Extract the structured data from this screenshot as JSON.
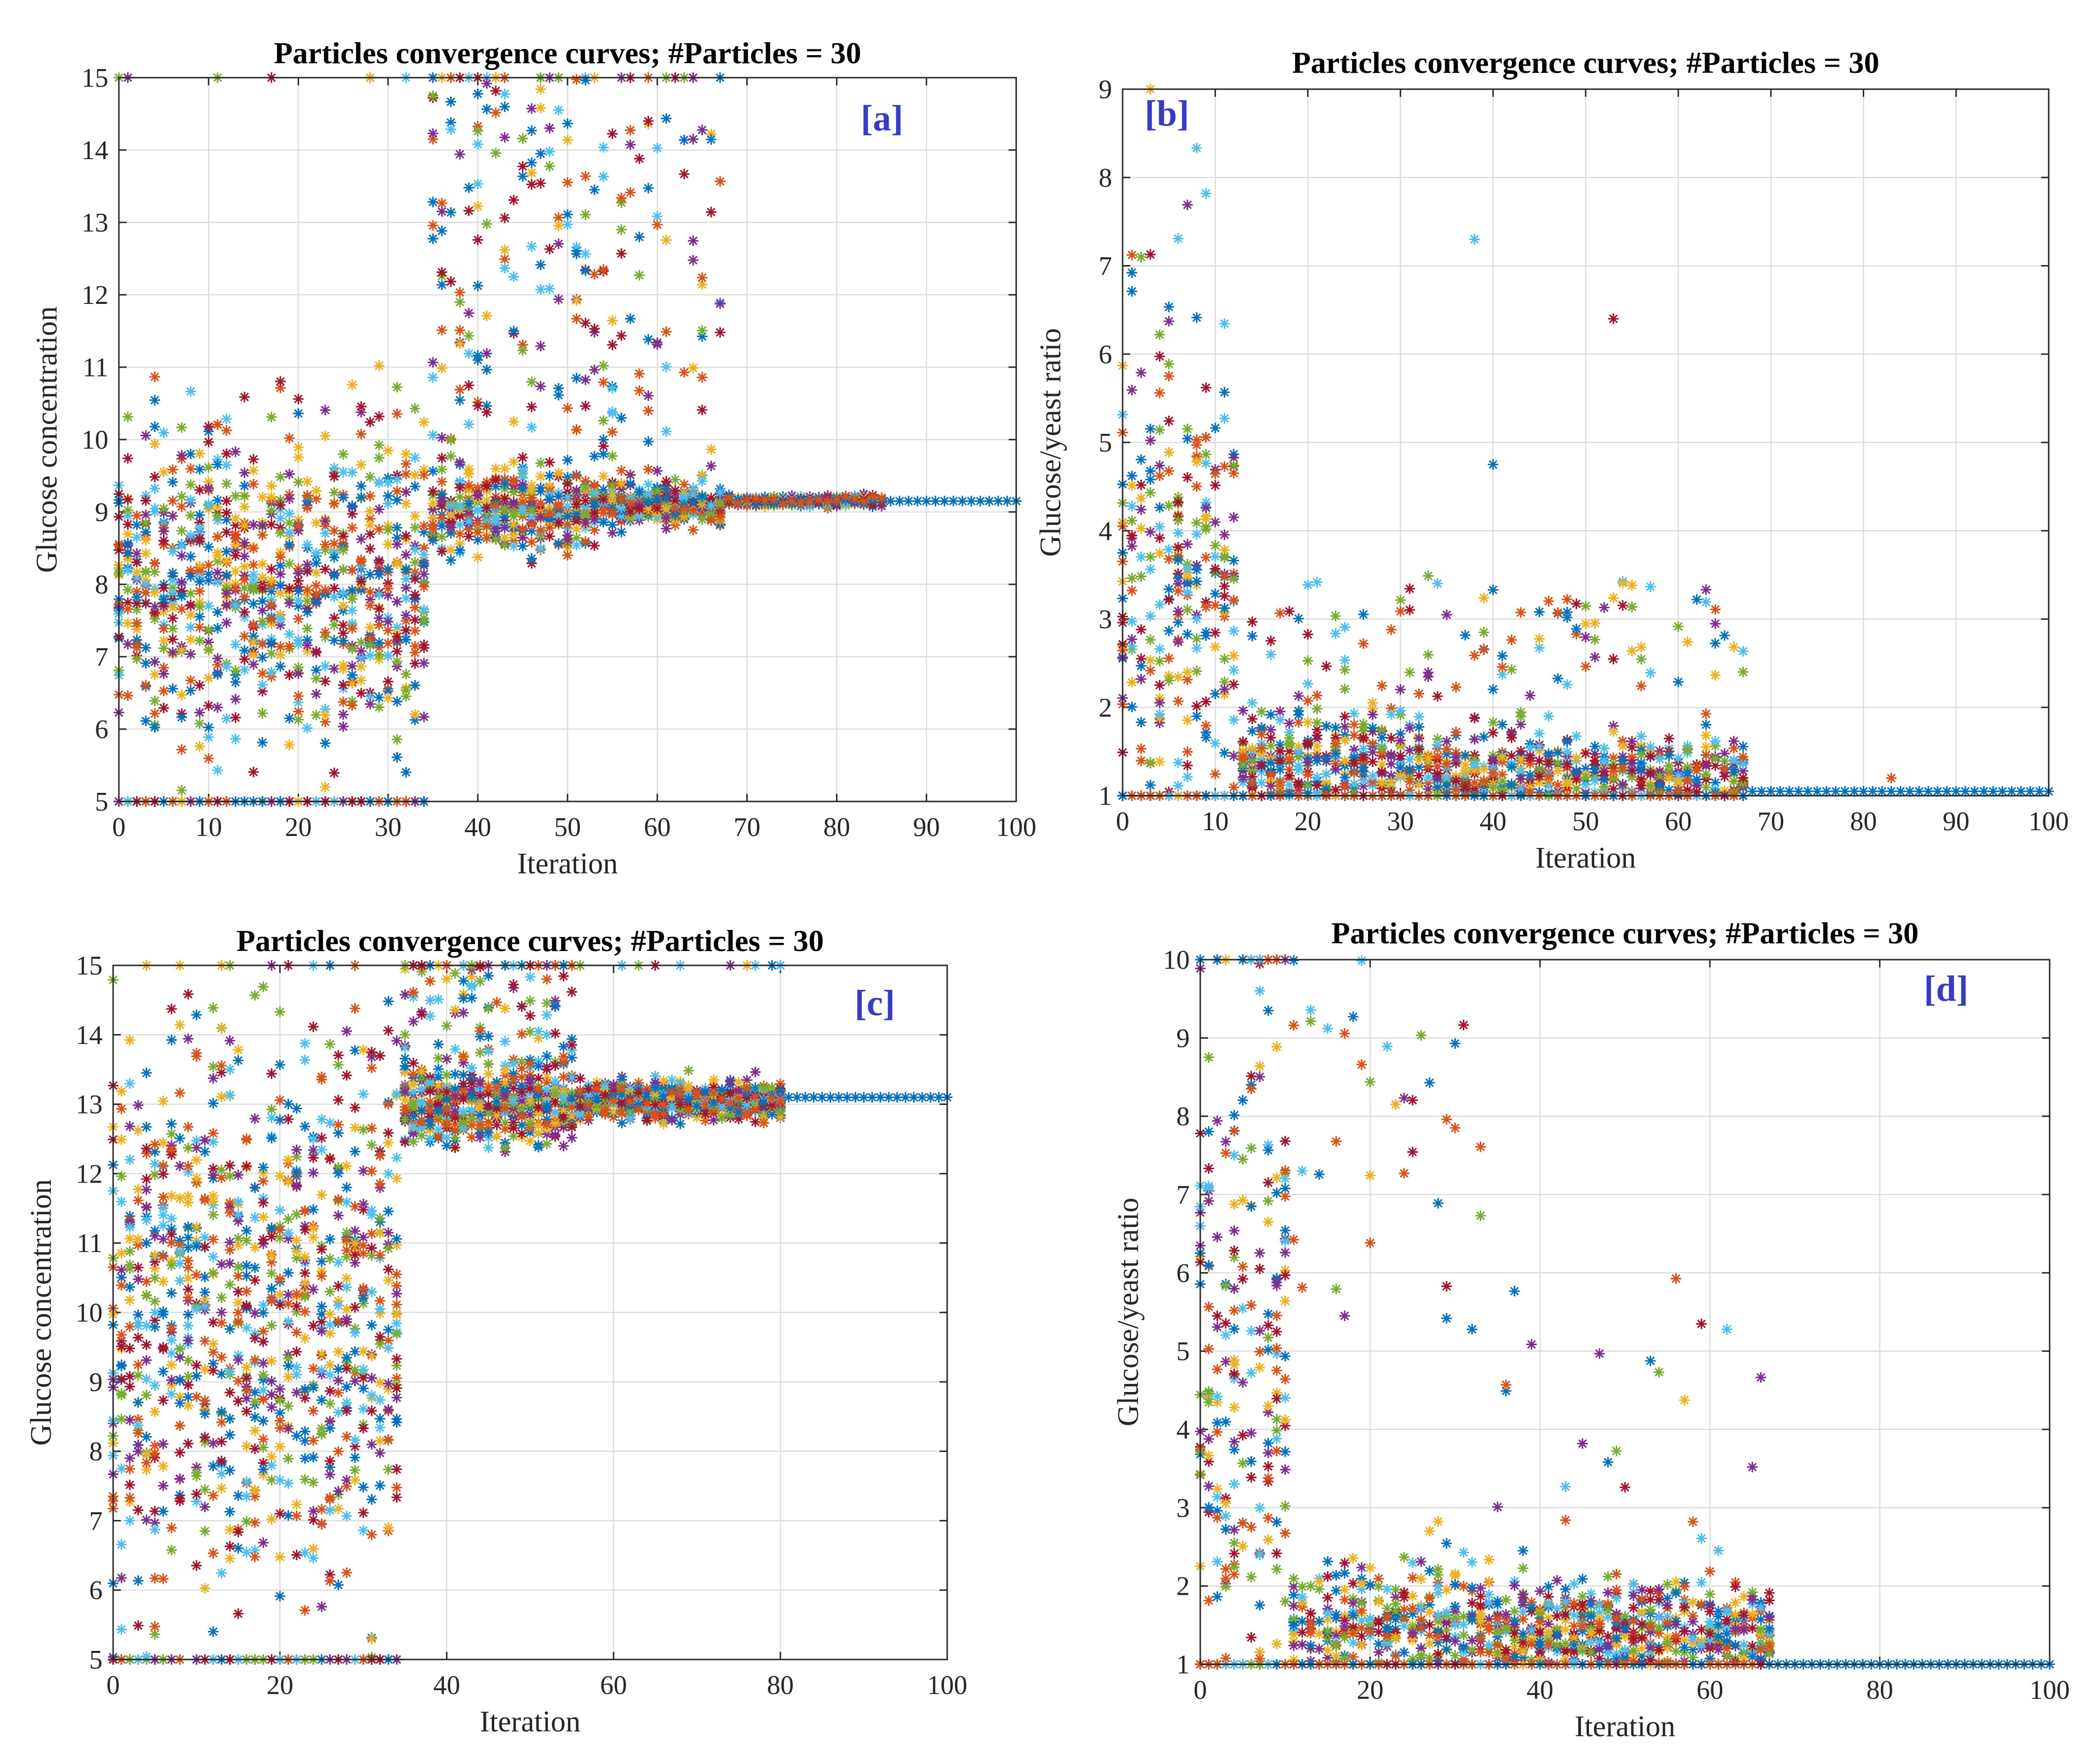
{
  "figure": {
    "description_panels": [
      "a",
      "b",
      "c",
      "d"
    ]
  },
  "colors": {
    "series": [
      "#0072BD",
      "#D95319",
      "#EDB120",
      "#7E2F8E",
      "#77AC30",
      "#4DBEEE",
      "#A2142F"
    ],
    "panel_label": "#3a3ac8",
    "grid": "#dcdcdc"
  },
  "chart_data": [
    {
      "id": "a",
      "type": "scatter",
      "title": "Particles convergence curves; #Particles = 30",
      "panel_label": "[a]",
      "xlabel": "Iteration",
      "ylabel": "Glucose concentration",
      "xlim": [
        0,
        100
      ],
      "ylim": [
        5,
        15
      ],
      "xticks": [
        "0",
        "10",
        "20",
        "30",
        "40",
        "50",
        "60",
        "70",
        "80",
        "90",
        "100"
      ],
      "yticks": [
        "5",
        "6",
        "7",
        "8",
        "9",
        "10",
        "11",
        "12",
        "13",
        "14",
        "15"
      ],
      "n_particles": 30,
      "iterations": 100,
      "phases": [
        {
          "x": [
            0,
            34
          ],
          "center": 8.0,
          "spread": 2.2,
          "frac_low_bound": 0.16,
          "low_bound": 5,
          "frac_high_bound": 0.01,
          "high_bound": 15
        },
        {
          "x": [
            35,
            52
          ],
          "center": 9.0,
          "spread": 0.55,
          "frac_outlier": 0.3,
          "outlier_range": [
            9.5,
            15
          ],
          "frac_high_bound": 0.04,
          "high_bound": 15
        },
        {
          "x": [
            53,
            67
          ],
          "center": 9.1,
          "spread": 0.3,
          "frac_outlier": 0.22,
          "outlier_range": [
            9.5,
            14.5
          ],
          "frac_high_bound": 0.02,
          "high_bound": 15
        },
        {
          "x": [
            68,
            85
          ],
          "center": 9.15,
          "spread": 0.06
        },
        {
          "x": [
            86,
            100
          ],
          "center": 9.15,
          "spread": 0.0
        }
      ],
      "final_value": 9.15
    },
    {
      "id": "b",
      "type": "scatter",
      "title": "Particles convergence curves; #Particles = 30",
      "panel_label": "[b]",
      "xlabel": "Iteration",
      "ylabel": "Glucose/yeast ratio",
      "xlim": [
        0,
        100
      ],
      "ylim": [
        1,
        9
      ],
      "xticks": [
        "0",
        "10",
        "20",
        "30",
        "40",
        "50",
        "60",
        "70",
        "80",
        "90",
        "100"
      ],
      "yticks": [
        "1",
        "2",
        "3",
        "4",
        "5",
        "6",
        "7",
        "8",
        "9"
      ],
      "n_particles": 30,
      "iterations": 100,
      "phases": [
        {
          "x": [
            0,
            12
          ],
          "center": 3.5,
          "spread": 3.0,
          "frac_low_bound": 0.25,
          "low_bound": 1
        },
        {
          "x": [
            13,
            34
          ],
          "center": 1.3,
          "spread": 0.6,
          "frac_outlier": 0.1,
          "outlier_range": [
            1.8,
            3.5
          ],
          "frac_low_bound": 0.35,
          "low_bound": 1
        },
        {
          "x": [
            35,
            67
          ],
          "center": 1.2,
          "spread": 0.45,
          "frac_outlier": 0.1,
          "outlier_range": [
            1.8,
            3.5
          ],
          "frac_low_bound": 0.35,
          "low_bound": 1
        },
        {
          "x": [
            68,
            100
          ],
          "center": 1.05,
          "spread": 0.0
        }
      ],
      "final_value": 1.05,
      "annotations": [
        {
          "x": 38,
          "y": 7.3
        },
        {
          "x": 53,
          "y": 6.4
        },
        {
          "x": 40,
          "y": 4.75
        },
        {
          "x": 83,
          "y": 1.2
        }
      ]
    },
    {
      "id": "c",
      "type": "scatter",
      "title": "Particles convergence curves; #Particles = 30",
      "panel_label": "[c]",
      "xlabel": "Iteration",
      "ylabel": "Glucose concentration",
      "xlim": [
        0,
        100
      ],
      "ylim": [
        5,
        15
      ],
      "xticks": [
        "0",
        "20",
        "40",
        "60",
        "80",
        "100"
      ],
      "yticks": [
        "5",
        "6",
        "7",
        "8",
        "9",
        "10",
        "11",
        "12",
        "13",
        "14",
        "15"
      ],
      "n_particles": 30,
      "iterations": 100,
      "phases": [
        {
          "x": [
            0,
            34
          ],
          "center": 10.0,
          "spread": 4.2,
          "frac_low_bound": 0.12,
          "low_bound": 5
        },
        {
          "x": [
            35,
            55
          ],
          "center": 13.0,
          "spread": 0.6,
          "frac_outlier": 0.15,
          "outlier_range": [
            13.5,
            15
          ],
          "frac_high_bound": 0.08,
          "high_bound": 15
        },
        {
          "x": [
            56,
            80
          ],
          "center": 13.05,
          "spread": 0.25,
          "frac_high_bound": 0.01,
          "high_bound": 15
        },
        {
          "x": [
            81,
            100
          ],
          "center": 13.1,
          "spread": 0.0
        }
      ],
      "final_value": 13.1
    },
    {
      "id": "d",
      "type": "scatter",
      "title": "Particles convergence curves; #Particles = 30",
      "panel_label": "[d]",
      "xlabel": "Iteration",
      "ylabel": "Glucose/yeast ratio",
      "xlim": [
        0,
        100
      ],
      "ylim": [
        1,
        10
      ],
      "xticks": [
        "0",
        "20",
        "40",
        "60",
        "80",
        "100"
      ],
      "yticks": [
        "1",
        "2",
        "3",
        "4",
        "5",
        "6",
        "7",
        "8",
        "9",
        "10"
      ],
      "n_particles": 30,
      "iterations": 100,
      "phases": [
        {
          "x": [
            0,
            10
          ],
          "center": 5.0,
          "spread": 4.5,
          "frac_low_bound": 0.25,
          "low_bound": 1,
          "frac_high_bound": 0.1,
          "high_bound": 10
        },
        {
          "x": [
            11,
            34
          ],
          "center": 1.5,
          "spread": 0.8,
          "frac_outlier": 0.12,
          "outlier_range": [
            5,
            10
          ],
          "frac_low_bound": 0.45,
          "low_bound": 1
        },
        {
          "x": [
            35,
            67
          ],
          "center": 1.4,
          "spread": 0.7,
          "frac_outlier": 0.05,
          "outlier_range": [
            2.5,
            6
          ],
          "frac_low_bound": 0.4,
          "low_bound": 1
        },
        {
          "x": [
            68,
            100
          ],
          "center": 1.0,
          "spread": 0.0
        }
      ],
      "final_value": 1.0
    }
  ]
}
